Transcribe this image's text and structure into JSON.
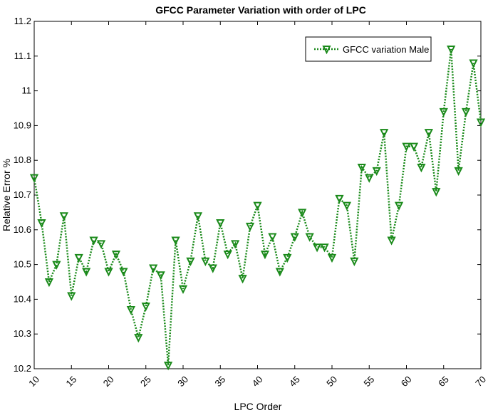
{
  "chart_data": {
    "type": "line",
    "title": "GFCC Parameter Variation with order of LPC",
    "xlabel": "LPC Order",
    "ylabel": "Relative Error %",
    "xlim": [
      10,
      70
    ],
    "ylim": [
      10.2,
      11.2
    ],
    "x_ticks": [
      "10",
      "15",
      "20",
      "25",
      "30",
      "35",
      "40",
      "45",
      "50",
      "55",
      "60",
      "65",
      "70"
    ],
    "y_ticks": [
      "10.2",
      "10.3",
      "10.4",
      "10.5",
      "10.6",
      "10.7",
      "10.8",
      "10.9",
      "11",
      "11.1",
      "11.2"
    ],
    "legend_position": "top-right",
    "grid": false,
    "series": [
      {
        "name": "GFCC variation Male",
        "color": "#1a8a1a",
        "line_style": "dotted",
        "marker": "triangle-down",
        "x": [
          10,
          11,
          12,
          13,
          14,
          15,
          16,
          17,
          18,
          19,
          20,
          21,
          22,
          23,
          24,
          25,
          26,
          27,
          28,
          29,
          30,
          31,
          32,
          33,
          34,
          35,
          36,
          37,
          38,
          39,
          40,
          41,
          42,
          43,
          44,
          45,
          46,
          47,
          48,
          49,
          50,
          51,
          52,
          53,
          54,
          55,
          56,
          57,
          58,
          59,
          60,
          61,
          62,
          63,
          64,
          65,
          66,
          67,
          68,
          69,
          70
        ],
        "values": [
          10.75,
          10.62,
          10.45,
          10.5,
          10.64,
          10.41,
          10.52,
          10.48,
          10.57,
          10.56,
          10.48,
          10.53,
          10.48,
          10.37,
          10.29,
          10.38,
          10.49,
          10.47,
          10.21,
          10.57,
          10.43,
          10.51,
          10.64,
          10.51,
          10.49,
          10.62,
          10.53,
          10.56,
          10.46,
          10.61,
          10.67,
          10.53,
          10.58,
          10.48,
          10.52,
          10.58,
          10.65,
          10.58,
          10.55,
          10.55,
          10.52,
          10.69,
          10.67,
          10.51,
          10.78,
          10.75,
          10.77,
          10.88,
          10.57,
          10.67,
          10.84,
          10.84,
          10.78,
          10.88,
          10.71,
          10.94,
          11.12,
          10.77,
          10.94,
          11.08,
          10.91
        ]
      }
    ]
  }
}
